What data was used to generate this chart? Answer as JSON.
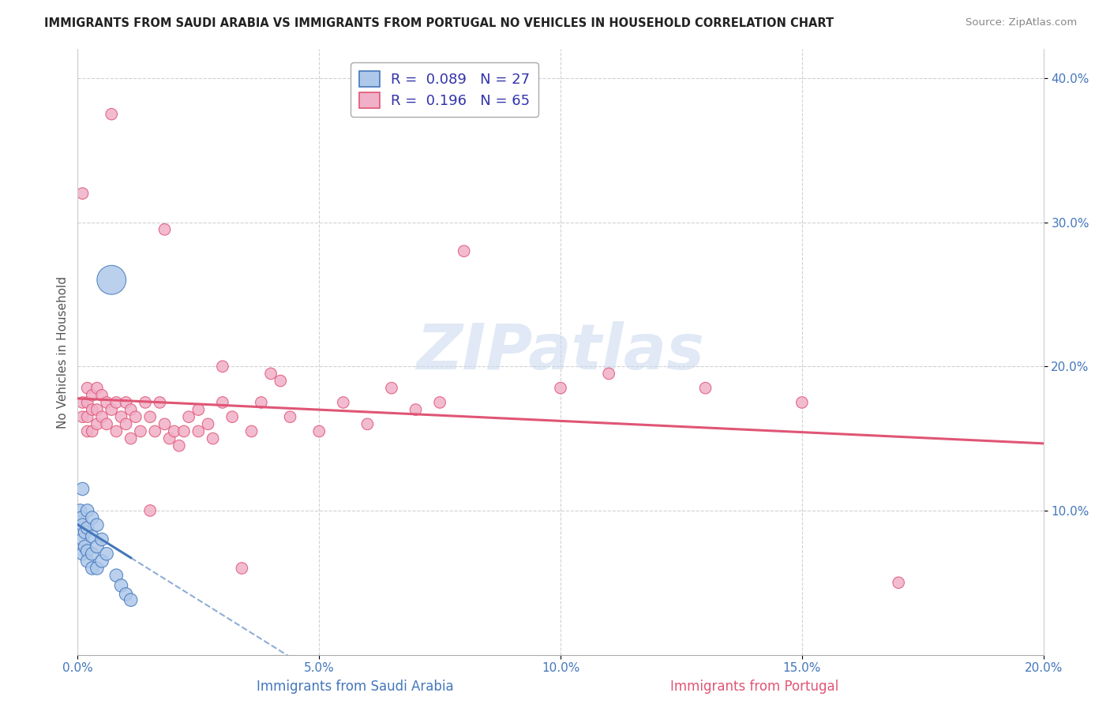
{
  "title": "IMMIGRANTS FROM SAUDI ARABIA VS IMMIGRANTS FROM PORTUGAL NO VEHICLES IN HOUSEHOLD CORRELATION CHART",
  "source": "Source: ZipAtlas.com",
  "ylabel": "No Vehicles in Household",
  "xlabel_blue": "Immigrants from Saudi Arabia",
  "xlabel_pink": "Immigrants from Portugal",
  "R_blue": 0.089,
  "N_blue": 27,
  "R_pink": 0.196,
  "N_pink": 65,
  "color_blue": "#aec8ea",
  "color_pink": "#f0b0c8",
  "line_blue": "#4477bb",
  "line_pink": "#e05575",
  "watermark_color": "#c8d8ee",
  "xlim": [
    0.0,
    0.2
  ],
  "ylim": [
    0.0,
    0.42
  ],
  "xticks": [
    0.0,
    0.05,
    0.1,
    0.15,
    0.2
  ],
  "yticks": [
    0.1,
    0.2,
    0.3,
    0.4
  ],
  "ytick_labels": [
    "10.0%",
    "20.0%",
    "30.0%",
    "40.0%"
  ],
  "xtick_labels": [
    "0.0%",
    "5.0%",
    "10.0%",
    "15.0%",
    "20.0%"
  ],
  "blue_scatter": [
    [
      0.0005,
      0.1
    ],
    [
      0.0008,
      0.095
    ],
    [
      0.001,
      0.115
    ],
    [
      0.001,
      0.09
    ],
    [
      0.001,
      0.08
    ],
    [
      0.001,
      0.07
    ],
    [
      0.0015,
      0.085
    ],
    [
      0.0015,
      0.075
    ],
    [
      0.002,
      0.1
    ],
    [
      0.002,
      0.088
    ],
    [
      0.002,
      0.072
    ],
    [
      0.002,
      0.065
    ],
    [
      0.003,
      0.095
    ],
    [
      0.003,
      0.082
    ],
    [
      0.003,
      0.07
    ],
    [
      0.003,
      0.06
    ],
    [
      0.004,
      0.09
    ],
    [
      0.004,
      0.075
    ],
    [
      0.004,
      0.06
    ],
    [
      0.005,
      0.08
    ],
    [
      0.005,
      0.065
    ],
    [
      0.006,
      0.07
    ],
    [
      0.007,
      0.26
    ],
    [
      0.008,
      0.055
    ],
    [
      0.009,
      0.048
    ],
    [
      0.01,
      0.042
    ],
    [
      0.011,
      0.038
    ]
  ],
  "pink_scatter": [
    [
      0.001,
      0.32
    ],
    [
      0.001,
      0.175
    ],
    [
      0.001,
      0.165
    ],
    [
      0.002,
      0.185
    ],
    [
      0.002,
      0.175
    ],
    [
      0.002,
      0.165
    ],
    [
      0.002,
      0.155
    ],
    [
      0.003,
      0.18
    ],
    [
      0.003,
      0.17
    ],
    [
      0.003,
      0.155
    ],
    [
      0.004,
      0.185
    ],
    [
      0.004,
      0.17
    ],
    [
      0.004,
      0.16
    ],
    [
      0.005,
      0.18
    ],
    [
      0.005,
      0.165
    ],
    [
      0.006,
      0.175
    ],
    [
      0.006,
      0.16
    ],
    [
      0.007,
      0.375
    ],
    [
      0.007,
      0.17
    ],
    [
      0.008,
      0.175
    ],
    [
      0.008,
      0.155
    ],
    [
      0.009,
      0.165
    ],
    [
      0.01,
      0.175
    ],
    [
      0.01,
      0.16
    ],
    [
      0.011,
      0.17
    ],
    [
      0.011,
      0.15
    ],
    [
      0.012,
      0.165
    ],
    [
      0.013,
      0.155
    ],
    [
      0.014,
      0.175
    ],
    [
      0.015,
      0.1
    ],
    [
      0.015,
      0.165
    ],
    [
      0.016,
      0.155
    ],
    [
      0.017,
      0.175
    ],
    [
      0.018,
      0.16
    ],
    [
      0.018,
      0.295
    ],
    [
      0.019,
      0.15
    ],
    [
      0.02,
      0.155
    ],
    [
      0.021,
      0.145
    ],
    [
      0.022,
      0.155
    ],
    [
      0.023,
      0.165
    ],
    [
      0.025,
      0.17
    ],
    [
      0.025,
      0.155
    ],
    [
      0.027,
      0.16
    ],
    [
      0.028,
      0.15
    ],
    [
      0.03,
      0.175
    ],
    [
      0.03,
      0.2
    ],
    [
      0.032,
      0.165
    ],
    [
      0.034,
      0.06
    ],
    [
      0.036,
      0.155
    ],
    [
      0.038,
      0.175
    ],
    [
      0.04,
      0.195
    ],
    [
      0.042,
      0.19
    ],
    [
      0.044,
      0.165
    ],
    [
      0.05,
      0.155
    ],
    [
      0.055,
      0.175
    ],
    [
      0.06,
      0.16
    ],
    [
      0.065,
      0.185
    ],
    [
      0.07,
      0.17
    ],
    [
      0.075,
      0.175
    ],
    [
      0.08,
      0.28
    ],
    [
      0.1,
      0.185
    ],
    [
      0.11,
      0.195
    ],
    [
      0.13,
      0.185
    ],
    [
      0.15,
      0.175
    ],
    [
      0.17,
      0.05
    ]
  ],
  "blue_point_size": 140,
  "pink_point_size": 110,
  "large_blue_size": 700,
  "large_blue_idx": 22
}
